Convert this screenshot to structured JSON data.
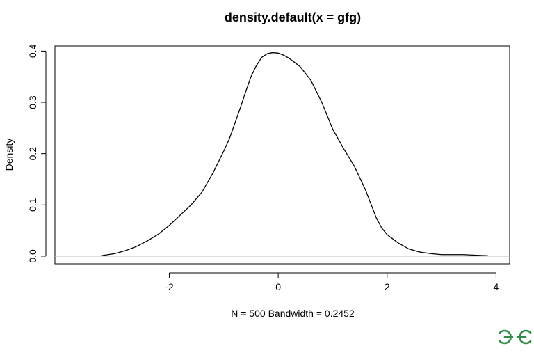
{
  "chart_data": {
    "type": "line",
    "title": "density.default(x = gfg)",
    "xlabel": "N = 500   Bandwidth = 0.2452",
    "ylabel": "Density",
    "xlim": [
      -4.1,
      4.25
    ],
    "ylim": [
      -0.015,
      0.41
    ],
    "x_ticks": [
      -2,
      0,
      2,
      4
    ],
    "x_tick_labels": [
      "-2",
      "0",
      "2",
      "4"
    ],
    "y_ticks": [
      0.0,
      0.1,
      0.2,
      0.3,
      0.4
    ],
    "y_tick_labels": [
      "0.0",
      "0.1",
      "0.2",
      "0.3",
      "0.4"
    ],
    "baseline": 0,
    "grid": false,
    "series": [
      {
        "x": [
          -3.25,
          -3.0,
          -2.8,
          -2.6,
          -2.4,
          -2.2,
          -2.0,
          -1.8,
          -1.6,
          -1.4,
          -1.2,
          -1.0,
          -0.9,
          -0.8,
          -0.7,
          -0.6,
          -0.5,
          -0.4,
          -0.3,
          -0.2,
          -0.1,
          0.0,
          0.1,
          0.2,
          0.3,
          0.4,
          0.6,
          0.8,
          1.0,
          1.2,
          1.4,
          1.6,
          1.8,
          1.9,
          2.0,
          2.2,
          2.4,
          2.6,
          2.8,
          3.0,
          3.2,
          3.4,
          3.6,
          3.85
        ],
        "y": [
          0.001,
          0.005,
          0.011,
          0.019,
          0.03,
          0.043,
          0.06,
          0.08,
          0.1,
          0.125,
          0.162,
          0.205,
          0.228,
          0.258,
          0.288,
          0.32,
          0.35,
          0.372,
          0.388,
          0.395,
          0.397,
          0.396,
          0.392,
          0.386,
          0.378,
          0.37,
          0.343,
          0.3,
          0.248,
          0.21,
          0.175,
          0.13,
          0.075,
          0.055,
          0.042,
          0.026,
          0.014,
          0.008,
          0.005,
          0.003,
          0.003,
          0.003,
          0.002,
          0.001
        ]
      }
    ]
  },
  "logo": {
    "text": "ƏG",
    "color": "#2f8d46"
  }
}
